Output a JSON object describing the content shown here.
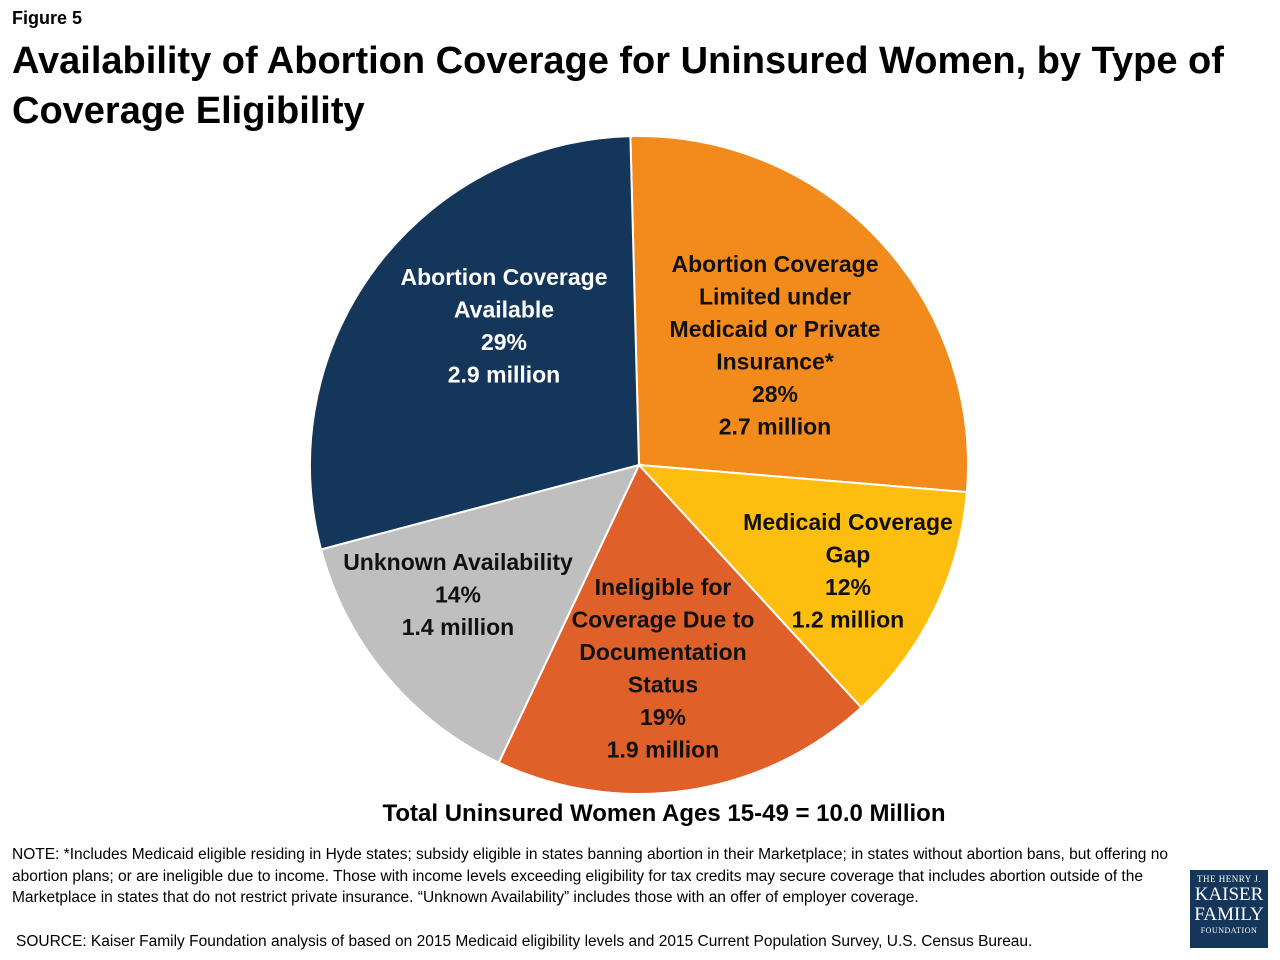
{
  "figure_label": "Figure 5",
  "title": "Availability of Abortion Coverage for Uninsured Women, by Type of Coverage Eligibility",
  "chart_data": {
    "type": "pie",
    "unit_value": "million",
    "slices": [
      {
        "label_lines": [
          "Abortion Coverage",
          "Limited under",
          "Medicaid or Private",
          "Insurance*"
        ],
        "percent_label": "28%",
        "value_label": "2.7 million",
        "value": 2.7,
        "percent": 28,
        "color": "#F28B1C",
        "text_color": "#111111"
      },
      {
        "label_lines": [
          "Medicaid Coverage",
          "Gap"
        ],
        "percent_label": "12%",
        "value_label": "1.2 million",
        "value": 1.2,
        "percent": 12,
        "color": "#FDBE10",
        "text_color": "#111111"
      },
      {
        "label_lines": [
          "Ineligible for",
          "Coverage Due to",
          "Documentation",
          "Status"
        ],
        "percent_label": "19%",
        "value_label": "1.9 million",
        "value": 1.9,
        "percent": 19,
        "color": "#E0602A",
        "text_color": "#111111"
      },
      {
        "label_lines": [
          "Unknown Availability"
        ],
        "percent_label": "14%",
        "value_label": "1.4 million",
        "value": 1.4,
        "percent": 14,
        "color": "#BFBFBF",
        "text_color": "#111111"
      },
      {
        "label_lines": [
          "Abortion Coverage",
          "Available"
        ],
        "percent_label": "29%",
        "value_label": "2.9 million",
        "value": 2.9,
        "percent": 29,
        "color": "#15365B",
        "text_color": "#FFFFFF"
      }
    ],
    "total_label": "Total Uninsured Women Ages 15-49 = 10.0 Million"
  },
  "note": "NOTE: *Includes Medicaid eligible residing in Hyde states; subsidy eligible in states banning abortion in their Marketplace; in states without abortion bans, but offering no abortion plans; or are ineligible due to income.  Those with  income levels exceeding eligibility for tax credits may secure coverage that includes abortion outside of the Marketplace in states that do not restrict private insurance.  “Unknown Availability” includes those with an offer of employer coverage.",
  "source": "SOURCE: Kaiser Family Foundation analysis of based on 2015 Medicaid eligibility levels and 2015 Current Population Survey, U.S. Census Bureau.",
  "logo": {
    "line1": "THE HENRY J.",
    "line2": "KAISER",
    "line3": "FAMILY",
    "line4": "FOUNDATION"
  }
}
